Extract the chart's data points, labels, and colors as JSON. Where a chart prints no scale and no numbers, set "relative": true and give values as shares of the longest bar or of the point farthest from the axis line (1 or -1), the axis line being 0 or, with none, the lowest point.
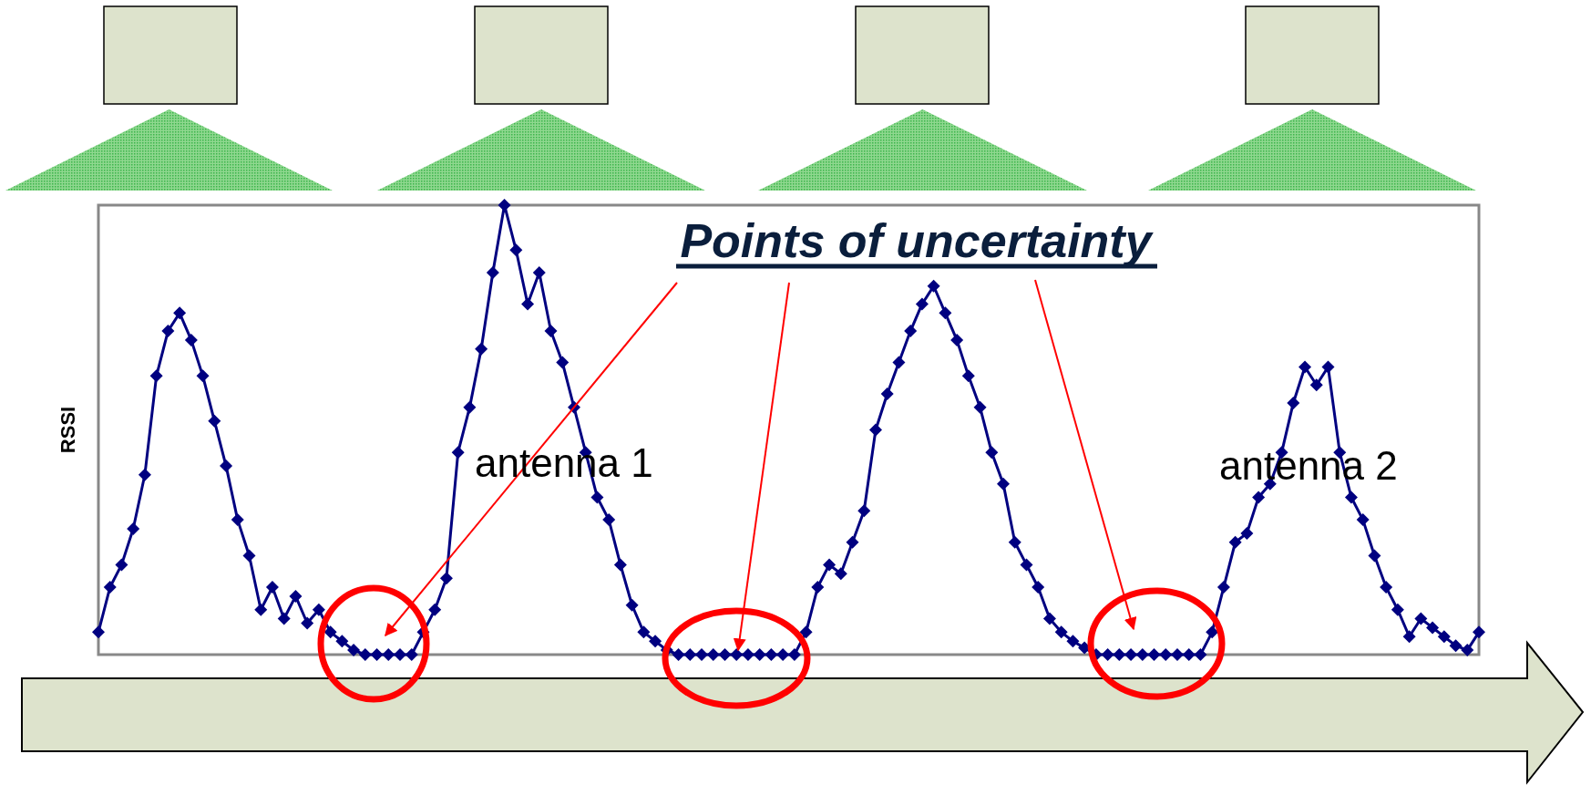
{
  "chart_data": {
    "type": "line",
    "relative": true,
    "ylabel": "RSSI",
    "marker": "diamond",
    "line_style": "solid",
    "annotations": [
      "Points of uncertainty",
      "antenna 1",
      "antenna 2"
    ],
    "categories": [
      null,
      null,
      null,
      null,
      null,
      null,
      null,
      null,
      null,
      null,
      null,
      null,
      null,
      null,
      null,
      null,
      null,
      null,
      null,
      null,
      null,
      null,
      null,
      null,
      null,
      null,
      null,
      null,
      null,
      null,
      null,
      null,
      null,
      null,
      null,
      null,
      null,
      null,
      null,
      null,
      null,
      null,
      null,
      null,
      null,
      null,
      null,
      null,
      null,
      null,
      null,
      null,
      null,
      null,
      null,
      null,
      null,
      null,
      null,
      null,
      null,
      null,
      null,
      null,
      null,
      null,
      null,
      null,
      null,
      null,
      null,
      null,
      null,
      null,
      null,
      null,
      null,
      null,
      null,
      null,
      null,
      null,
      null,
      null,
      null,
      null,
      null,
      null,
      null,
      null,
      null,
      null,
      null,
      null,
      null,
      null,
      null,
      null,
      null,
      null,
      null,
      null,
      null,
      null,
      null,
      null,
      null,
      null,
      null,
      null,
      null,
      null,
      null,
      null,
      null,
      null,
      null,
      null,
      null,
      null
    ],
    "series": [
      {
        "color": "#000080",
        "values": [
          0.05,
          0.15,
          0.2,
          0.28,
          0.4,
          0.62,
          0.72,
          0.76,
          0.7,
          0.62,
          0.52,
          0.42,
          0.3,
          0.22,
          0.1,
          0.15,
          0.08,
          0.13,
          0.07,
          0.1,
          0.05,
          0.03,
          0.01,
          0,
          0,
          0,
          0,
          0,
          0.05,
          0.1,
          0.17,
          0.45,
          0.55,
          0.68,
          0.85,
          1.0,
          0.9,
          0.78,
          0.85,
          0.72,
          0.65,
          0.55,
          0.45,
          0.35,
          0.3,
          0.2,
          0.11,
          0.05,
          0.03,
          0.01,
          0,
          0,
          0,
          0,
          0,
          0,
          0,
          0,
          0,
          0,
          0,
          0.05,
          0.15,
          0.2,
          0.18,
          0.25,
          0.32,
          0.5,
          0.58,
          0.65,
          0.72,
          0.78,
          0.82,
          0.76,
          0.7,
          0.62,
          0.55,
          0.45,
          0.38,
          0.25,
          0.2,
          0.15,
          0.08,
          0.05,
          0.03,
          0.015,
          0,
          0,
          0,
          0,
          0,
          0,
          0,
          0,
          0,
          0,
          0.05,
          0.15,
          0.25,
          0.27,
          0.35,
          0.38,
          0.45,
          0.56,
          0.64,
          0.6,
          0.64,
          0.45,
          0.35,
          0.3,
          0.22,
          0.15,
          0.1,
          0.04,
          0.08,
          0.06,
          0.04,
          0.02,
          0.01,
          0.05
        ]
      }
    ]
  }
}
